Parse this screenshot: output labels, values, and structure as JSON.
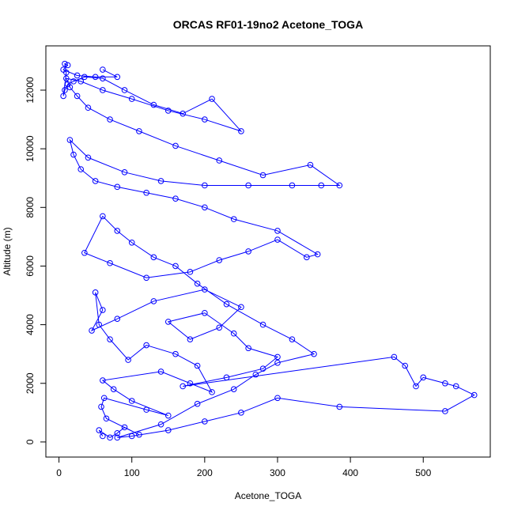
{
  "chart_data": {
    "type": "line",
    "title": "ORCAS RF01-19no2 Acetone_TOGA",
    "x_label": "Acetone_TOGA",
    "y_label": "Altitude (m)",
    "color": "#0000ff",
    "x": [
      60,
      55,
      70,
      80,
      90,
      110,
      65,
      58,
      62,
      120,
      150,
      100,
      75,
      60,
      140,
      180,
      210,
      190,
      160,
      120,
      95,
      70,
      55,
      50,
      60,
      45,
      80,
      130,
      200,
      250,
      220,
      180,
      150,
      200,
      240,
      260,
      300,
      280,
      230,
      170,
      460,
      475,
      490,
      500,
      530,
      545,
      570,
      530,
      385,
      300,
      250,
      200,
      150,
      100,
      80,
      140,
      190,
      240,
      270,
      300,
      350,
      320,
      280,
      230,
      190,
      160,
      130,
      100,
      80,
      60,
      35,
      70,
      120,
      180,
      220,
      260,
      300,
      340,
      355,
      300,
      240,
      200,
      160,
      120,
      80,
      50,
      30,
      20,
      15,
      40,
      90,
      140,
      200,
      260,
      320,
      360,
      385,
      345,
      280,
      220,
      160,
      110,
      70,
      40,
      25,
      15,
      10,
      30,
      60,
      100,
      150,
      200,
      250,
      210,
      170,
      130,
      90,
      60,
      35,
      20,
      12,
      8,
      6,
      10,
      8,
      12,
      6,
      25,
      50,
      80,
      60
    ],
    "values": [
      200,
      400,
      150,
      300,
      500,
      250,
      800,
      1200,
      1500,
      1100,
      900,
      1400,
      1800,
      2100,
      2400,
      2000,
      1700,
      2600,
      3000,
      3300,
      2800,
      3500,
      4000,
      5100,
      4500,
      3800,
      4200,
      4800,
      5200,
      4600,
      3900,
      3500,
      4100,
      4400,
      3700,
      3200,
      2900,
      2500,
      2200,
      1900,
      2900,
      2600,
      1900,
      2200,
      2000,
      1900,
      1600,
      1050,
      1200,
      1500,
      1000,
      700,
      400,
      200,
      150,
      600,
      1300,
      1800,
      2300,
      2700,
      3000,
      3500,
      4000,
      4700,
      5400,
      6000,
      6300,
      6800,
      7200,
      7700,
      6450,
      6100,
      5600,
      5800,
      6200,
      6500,
      6900,
      6300,
      6400,
      7200,
      7600,
      8000,
      8300,
      8500,
      8700,
      8900,
      9300,
      9800,
      10300,
      9700,
      9200,
      8900,
      8750,
      8750,
      8750,
      8750,
      8750,
      9450,
      9100,
      9600,
      10100,
      10600,
      11000,
      11400,
      11800,
      12100,
      12400,
      12300,
      12000,
      11700,
      11300,
      11000,
      10600,
      11700,
      11200,
      11500,
      12000,
      12400,
      12450,
      12300,
      12200,
      12000,
      11800,
      12600,
      12900,
      12850,
      12700,
      12500,
      12450,
      12450,
      12700
    ],
    "xlim": [
      -18,
      592
    ],
    "ylim": [
      -515,
      13510
    ],
    "xticks": [
      0,
      100,
      200,
      300,
      400,
      500
    ],
    "yticks": [
      0,
      2000,
      4000,
      6000,
      8000,
      10000,
      12000
    ]
  }
}
